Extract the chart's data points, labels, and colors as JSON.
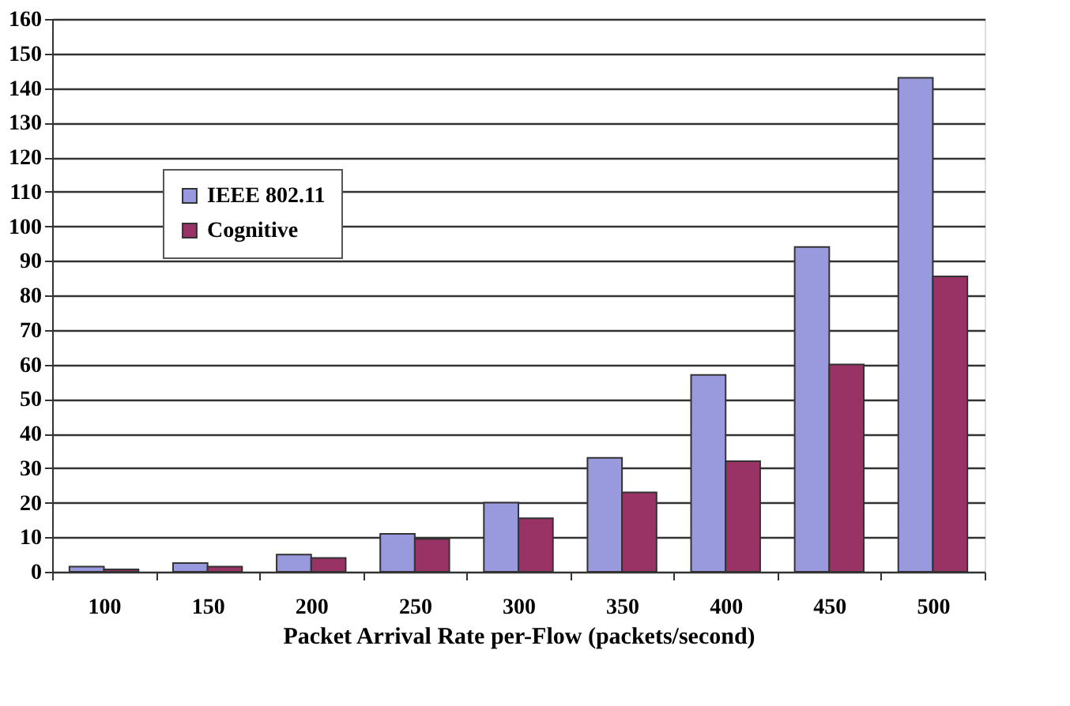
{
  "chart_data": {
    "type": "bar",
    "xlabel": "Packet Arrival Rate per-Flow (packets/second)",
    "categories": [
      "100",
      "150",
      "200",
      "250",
      "300",
      "350",
      "400",
      "450",
      "500"
    ],
    "series": [
      {
        "name": "IEEE 802.11",
        "color": "#9999dd",
        "values": [
          1.5,
          2.5,
          5,
          11,
          20,
          33,
          57,
          94,
          143
        ]
      },
      {
        "name": "Cognitive",
        "color": "#993366",
        "values": [
          0.7,
          1.5,
          4,
          9.5,
          15.5,
          23,
          32,
          60,
          85.5
        ]
      }
    ],
    "ylim": [
      0,
      160
    ],
    "yticks": [
      0,
      10,
      20,
      30,
      40,
      50,
      60,
      70,
      80,
      90,
      100,
      110,
      120,
      130,
      140,
      150,
      160
    ],
    "grid": "y",
    "legend": "top left"
  }
}
